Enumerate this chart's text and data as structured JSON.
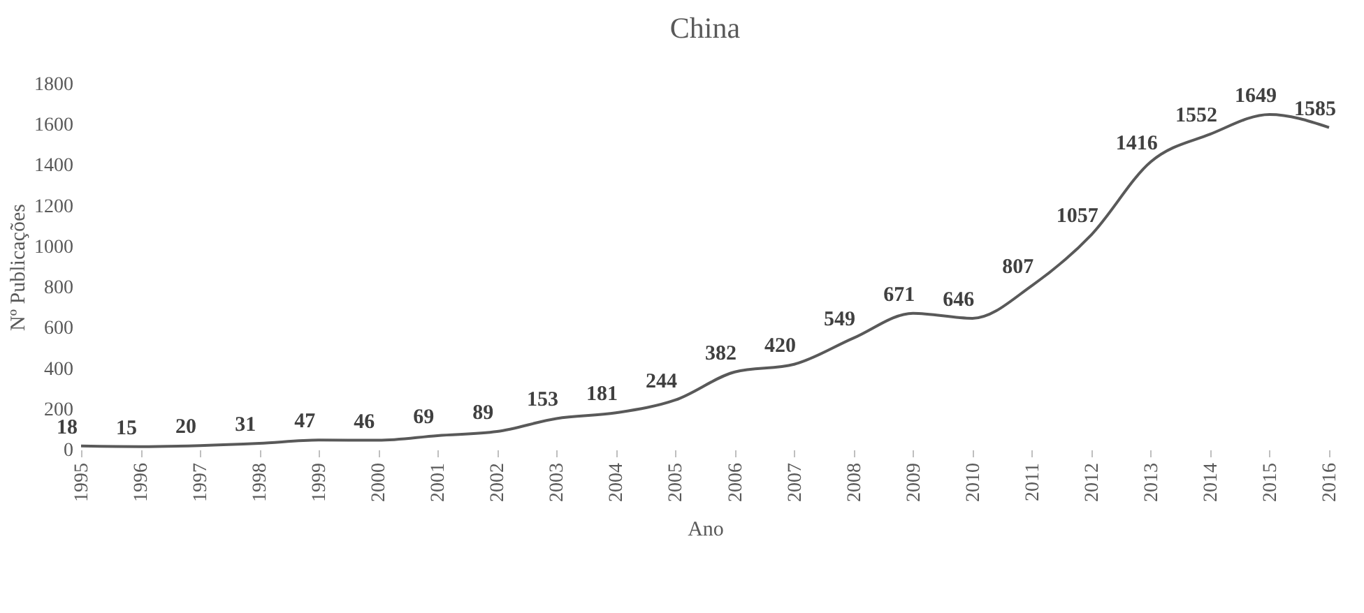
{
  "chart_data": {
    "type": "line",
    "title": "China",
    "xlabel": "Ano",
    "ylabel": "Nº Publicações",
    "categories": [
      "1995",
      "1996",
      "1997",
      "1998",
      "1999",
      "2000",
      "2001",
      "2002",
      "2003",
      "2004",
      "2005",
      "2006",
      "2007",
      "2008",
      "2009",
      "2010",
      "2011",
      "2012",
      "2013",
      "2014",
      "2015",
      "2016"
    ],
    "series": [
      {
        "color": "#595959",
        "values": [
          18,
          15,
          20,
          31,
          47,
          46,
          69,
          89,
          153,
          181,
          244,
          382,
          420,
          549,
          671,
          646,
          807,
          1057,
          1416,
          1552,
          1649,
          1585
        ]
      }
    ],
    "ylim": [
      0,
      1800
    ],
    "yticks": [
      0,
      200,
      400,
      600,
      800,
      1000,
      1200,
      1400,
      1600,
      1800
    ],
    "data_labels": true,
    "grid": false,
    "marker": "none",
    "line_style": "solid"
  }
}
